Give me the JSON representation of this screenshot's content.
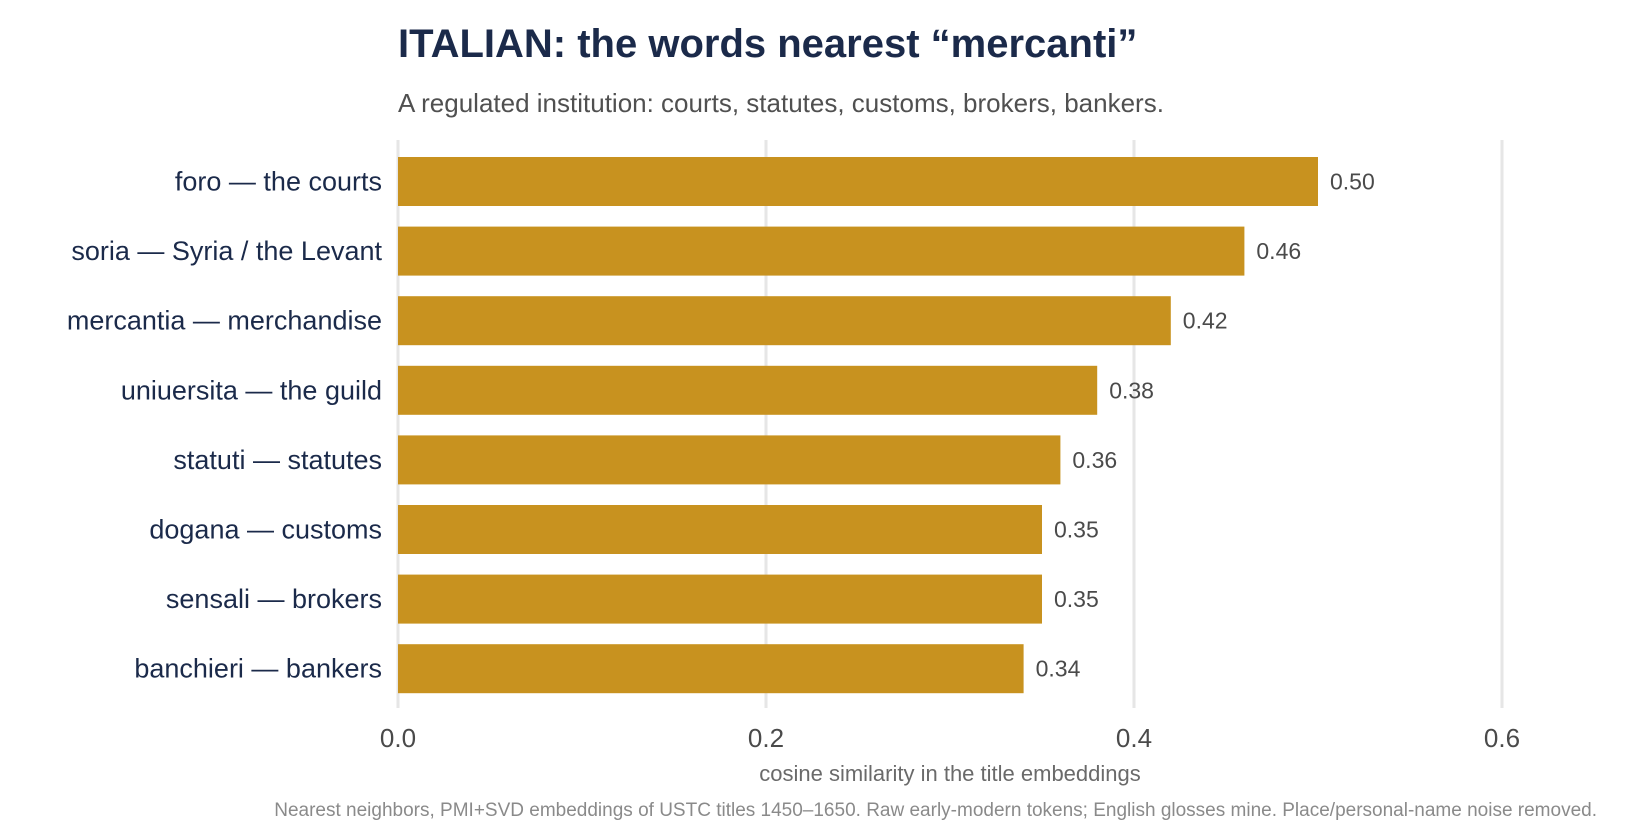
{
  "chart_data": {
    "type": "bar",
    "orientation": "horizontal",
    "title": "ITALIAN: the words nearest “mercanti”",
    "subtitle": "A regulated institution: courts, statutes, customs, brokers, bankers.",
    "xlabel": "cosine similarity in the title embeddings",
    "ylabel": "",
    "caption": "Nearest neighbors, PMI+SVD embeddings of USTC titles 1450–1650. Raw early-modern tokens; English glosses mine. Place/personal-name noise removed.",
    "categories": [
      "foro  —  the courts",
      "soria  —  Syria / the Levant",
      "mercantia  —  merchandise",
      "uniuersita  —  the guild",
      "statuti  —  statutes",
      "dogana  —  customs",
      "sensali  —  brokers",
      "banchieri  —  bankers"
    ],
    "values": [
      0.5,
      0.46,
      0.42,
      0.38,
      0.36,
      0.35,
      0.35,
      0.34
    ],
    "value_labels": [
      "0.50",
      "0.46",
      "0.42",
      "0.38",
      "0.36",
      "0.35",
      "0.35",
      "0.34"
    ],
    "xlim": [
      0,
      0.6
    ],
    "xticks": [
      0.0,
      0.2,
      0.4,
      0.6
    ],
    "xtick_labels": [
      "0.0",
      "0.2",
      "0.4",
      "0.6"
    ],
    "grid": true,
    "legend": "none",
    "bar_color": "#c8921f",
    "grid_color": "#e6e6e6",
    "title_color": "#1b2a4a"
  }
}
